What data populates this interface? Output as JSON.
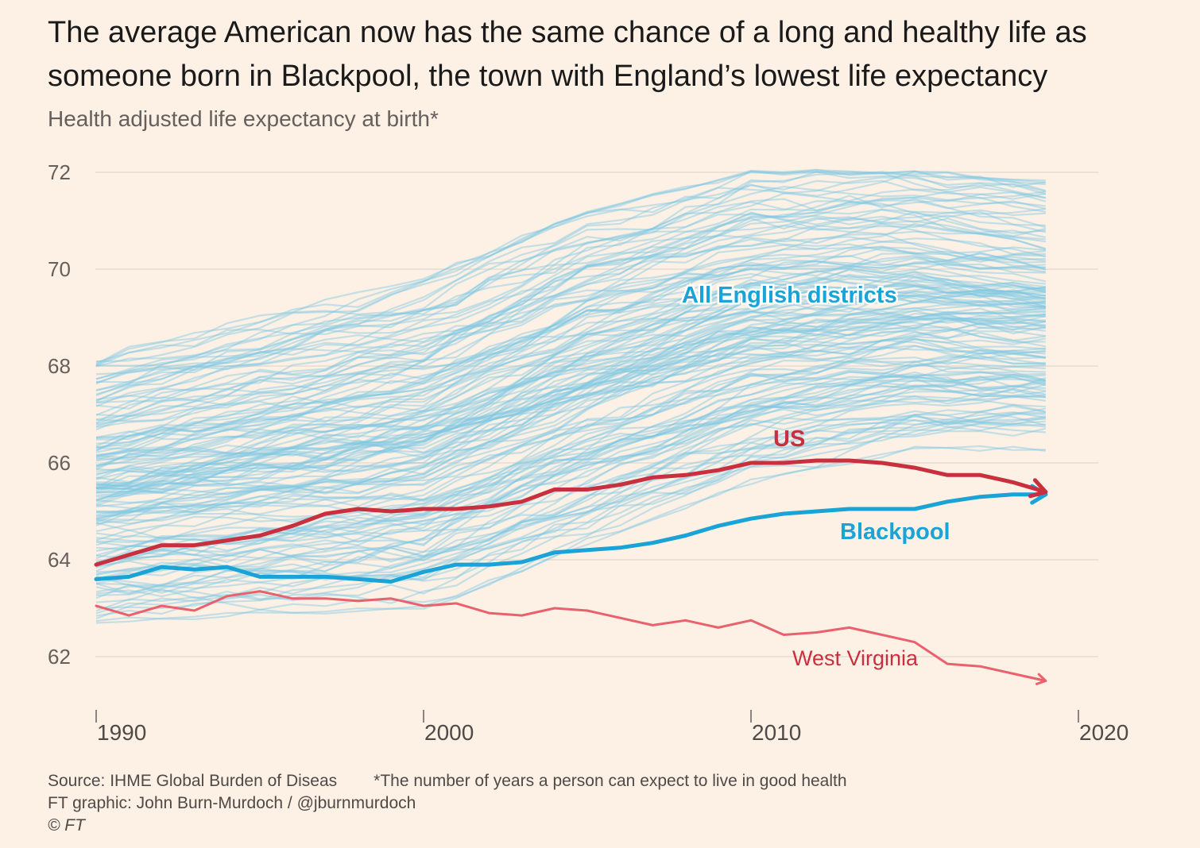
{
  "title": "The average American now has the same chance of a long and healthy life as someone born in Blackpool, the town with England’s lowest life expectancy",
  "subtitle": "Health adjusted life expectancy at birth*",
  "footer": {
    "source": "Source: IHME Global Burden of Diseas",
    "footnote": "*The number of years a person can expect to live in good health",
    "credit": "FT graphic: John Burn-Murdoch / @jburnmurdoch",
    "copyright": "© FT"
  },
  "chart_data": {
    "type": "line",
    "x_range": [
      1990,
      2020
    ],
    "y_range": [
      61,
      72.5
    ],
    "x_ticks": [
      1990,
      2000,
      2010,
      2020
    ],
    "y_ticks": [
      62,
      64,
      66,
      68,
      70,
      72
    ],
    "grid": "horizontal",
    "colors": {
      "background": "#fdf1e6",
      "districts": "#7ec8e3",
      "us": "#c8303f",
      "blackpool": "#1aa3d6",
      "west_virginia": "#e8616d",
      "grid": "#e6dcd1"
    },
    "annotations": {
      "districts": "All English districts",
      "us": "US",
      "blackpool": "Blackpool",
      "west_virginia": "West Virginia"
    },
    "x": [
      1990,
      1991,
      1992,
      1993,
      1994,
      1995,
      1996,
      1997,
      1998,
      1999,
      2000,
      2001,
      2002,
      2003,
      2004,
      2005,
      2006,
      2007,
      2008,
      2009,
      2010,
      2011,
      2012,
      2013,
      2014,
      2015,
      2016,
      2017,
      2018,
      2019
    ],
    "series": [
      {
        "name": "US",
        "values": [
          63.9,
          64.1,
          64.3,
          64.3,
          64.4,
          64.5,
          64.7,
          64.95,
          65.05,
          65.0,
          65.05,
          65.05,
          65.1,
          65.2,
          65.45,
          65.45,
          65.55,
          65.7,
          65.75,
          65.85,
          66.0,
          66.0,
          66.05,
          66.05,
          66.0,
          65.9,
          65.75,
          65.75,
          65.6,
          65.4
        ]
      },
      {
        "name": "Blackpool",
        "values": [
          63.6,
          63.65,
          63.85,
          63.8,
          63.85,
          63.65,
          63.65,
          63.65,
          63.6,
          63.55,
          63.75,
          63.9,
          63.9,
          63.95,
          64.15,
          64.2,
          64.25,
          64.35,
          64.5,
          64.7,
          64.85,
          64.95,
          65.0,
          65.05,
          65.05,
          65.05,
          65.2,
          65.3,
          65.35,
          65.35
        ]
      },
      {
        "name": "West Virginia",
        "values": [
          63.05,
          62.85,
          63.05,
          62.95,
          63.25,
          63.35,
          63.2,
          63.2,
          63.15,
          63.2,
          63.05,
          63.1,
          62.9,
          62.85,
          63.0,
          62.95,
          62.8,
          62.65,
          62.75,
          62.6,
          62.75,
          62.45,
          62.5,
          62.6,
          62.45,
          62.3,
          61.85,
          61.8,
          61.65,
          61.5
        ]
      }
    ],
    "district_band": {
      "count": 150,
      "years": [
        1990,
        1995,
        2000,
        2005,
        2010,
        2015,
        2019
      ],
      "low": [
        62.7,
        62.9,
        63.0,
        64.3,
        65.6,
        66.3,
        66.3
      ],
      "high": [
        68.2,
        69.0,
        69.8,
        71.2,
        72.0,
        72.0,
        71.8
      ]
    }
  }
}
